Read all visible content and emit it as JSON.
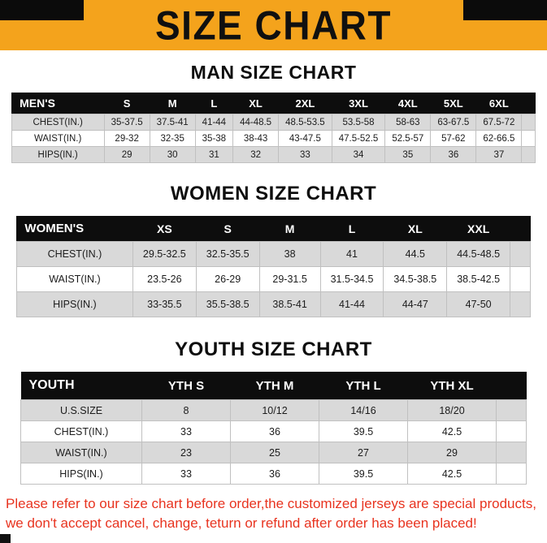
{
  "page": {
    "title": "SIZE CHART",
    "footer": {
      "line1": "Please refer to our size chart before order,the customized jerseys are special products,",
      "line2": "we don't accept cancel, change, teturn or refund after order has been placed!"
    }
  },
  "colors": {
    "banner_bg": "#f4a31c",
    "header_bg": "#0d0d0d",
    "row_stripe": "#d9d9d9",
    "footer_text": "#e8331f"
  },
  "chart_data": [
    {
      "type": "table",
      "name": "man-size-chart",
      "title": "MAN SIZE CHART",
      "trailing_spacer": true,
      "columns": [
        "MEN'S",
        "S",
        "M",
        "L",
        "XL",
        "2XL",
        "3XL",
        "4XL",
        "5XL",
        "6XL"
      ],
      "rows": [
        [
          "CHEST(IN.)",
          "35-37.5",
          "37.5-41",
          "41-44",
          "44-48.5",
          "48.5-53.5",
          "53.5-58",
          "58-63",
          "63-67.5",
          "67.5-72"
        ],
        [
          "WAIST(IN.)",
          "29-32",
          "32-35",
          "35-38",
          "38-43",
          "43-47.5",
          "47.5-52.5",
          "52.5-57",
          "57-62",
          "62-66.5"
        ],
        [
          "HIPS(IN.)",
          "29",
          "30",
          "31",
          "32",
          "33",
          "34",
          "35",
          "36",
          "37"
        ]
      ]
    },
    {
      "type": "table",
      "name": "women-size-chart",
      "title": "WOMEN SIZE CHART",
      "trailing_spacer": true,
      "columns": [
        "WOMEN'S",
        "XS",
        "S",
        "M",
        "L",
        "XL",
        "XXL"
      ],
      "rows": [
        [
          "CHEST(IN.)",
          "29.5-32.5",
          "32.5-35.5",
          "38",
          "41",
          "44.5",
          "44.5-48.5"
        ],
        [
          "WAIST(IN.)",
          "23.5-26",
          "26-29",
          "29-31.5",
          "31.5-34.5",
          "34.5-38.5",
          "38.5-42.5"
        ],
        [
          "HIPS(IN.)",
          "33-35.5",
          "35.5-38.5",
          "38.5-41",
          "41-44",
          "44-47",
          "47-50"
        ]
      ]
    },
    {
      "type": "table",
      "name": "youth-size-chart",
      "title": "YOUTH SIZE CHART",
      "trailing_spacer": true,
      "columns": [
        "YOUTH",
        "YTH S",
        "YTH M",
        "YTH L",
        "YTH XL"
      ],
      "rows": [
        [
          "U.S.SIZE",
          "8",
          "10/12",
          "14/16",
          "18/20"
        ],
        [
          "CHEST(IN.)",
          "33",
          "36",
          "39.5",
          "42.5"
        ],
        [
          "WAIST(IN.)",
          "23",
          "25",
          "27",
          "29"
        ],
        [
          "HIPS(IN.)",
          "33",
          "36",
          "39.5",
          "42.5"
        ]
      ]
    }
  ]
}
